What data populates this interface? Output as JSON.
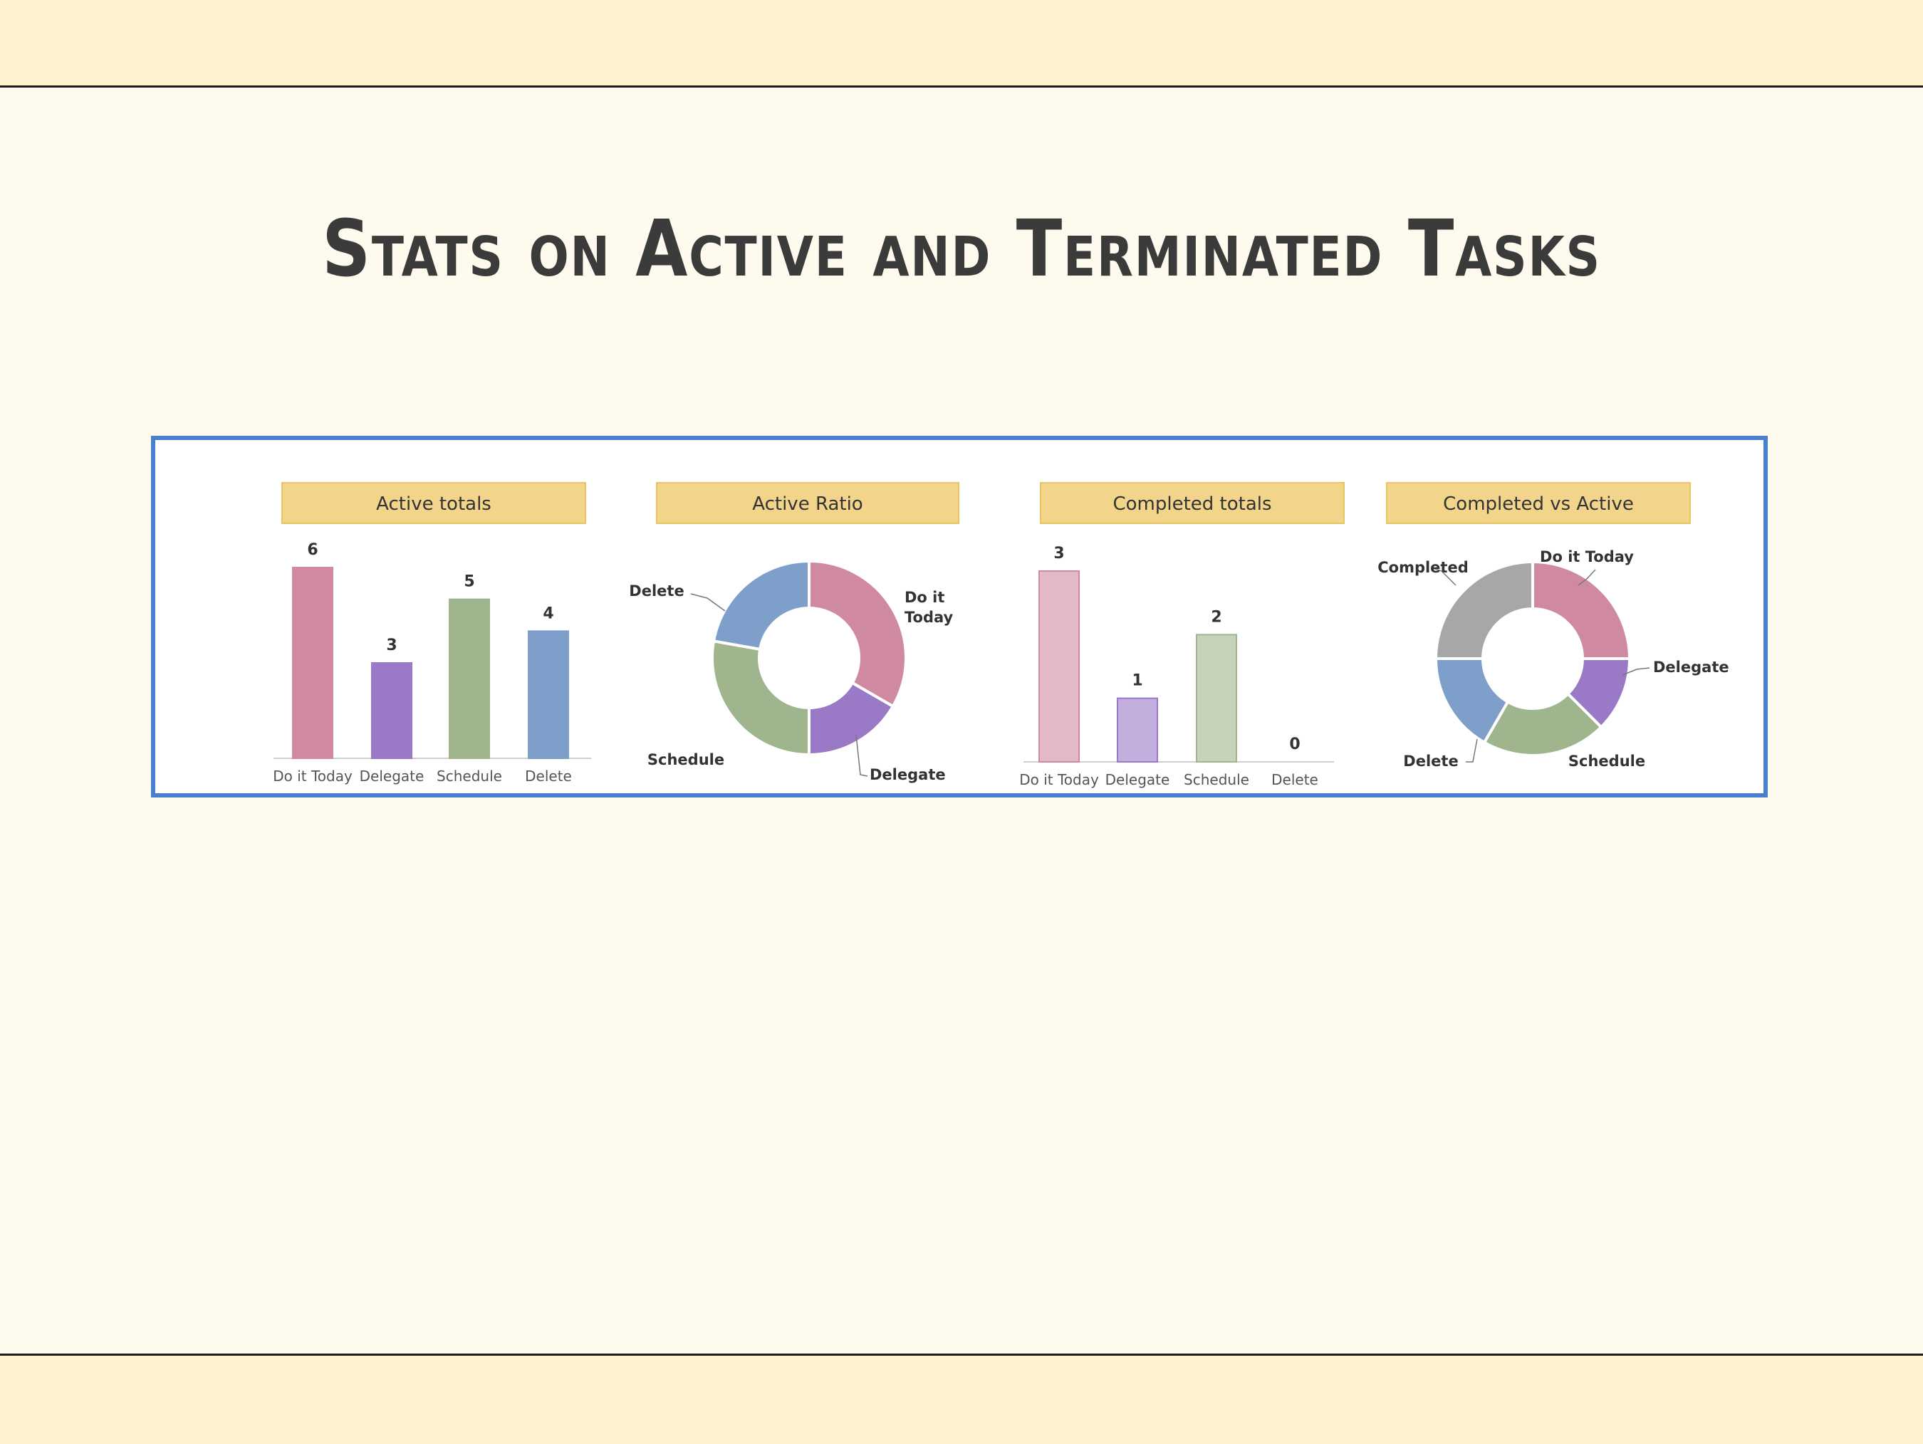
{
  "slide": {
    "title": "Stats on Active and Terminated Tasks"
  },
  "colors": {
    "do_it_today": "#cf8aa2",
    "delegate": "#9a79c6",
    "schedule": "#9fb58d",
    "delete": "#7f9fcb",
    "completed": "#a7a7a7",
    "header_fill": "#f2d48a",
    "header_border": "#e8c463",
    "panel_border": "#4a7fcf"
  },
  "chart_data": [
    {
      "type": "bar",
      "title": "Active totals",
      "categories": [
        "Do it Today",
        "Delegate",
        "Schedule",
        "Delete"
      ],
      "values": [
        6,
        3,
        5,
        4
      ],
      "ylim": [
        0,
        6
      ],
      "grid": false,
      "legend": "none"
    },
    {
      "type": "pie",
      "title": "Active Ratio",
      "donut": true,
      "labels": [
        "Do it Today",
        "Delegate",
        "Schedule",
        "Delete"
      ],
      "values": [
        6,
        3,
        5,
        4
      ]
    },
    {
      "type": "bar",
      "title": "Completed totals",
      "categories": [
        "Do it Today",
        "Delegate",
        "Schedule",
        "Delete"
      ],
      "values": [
        3,
        1,
        2,
        0
      ],
      "ylim": [
        0,
        3
      ],
      "grid": false,
      "legend": "none"
    },
    {
      "type": "pie",
      "title": "Completed vs Active",
      "donut": true,
      "labels": [
        "Do it Today",
        "Delegate",
        "Schedule",
        "Delete",
        "Completed"
      ],
      "values": [
        6,
        3,
        5,
        4,
        6
      ]
    }
  ]
}
